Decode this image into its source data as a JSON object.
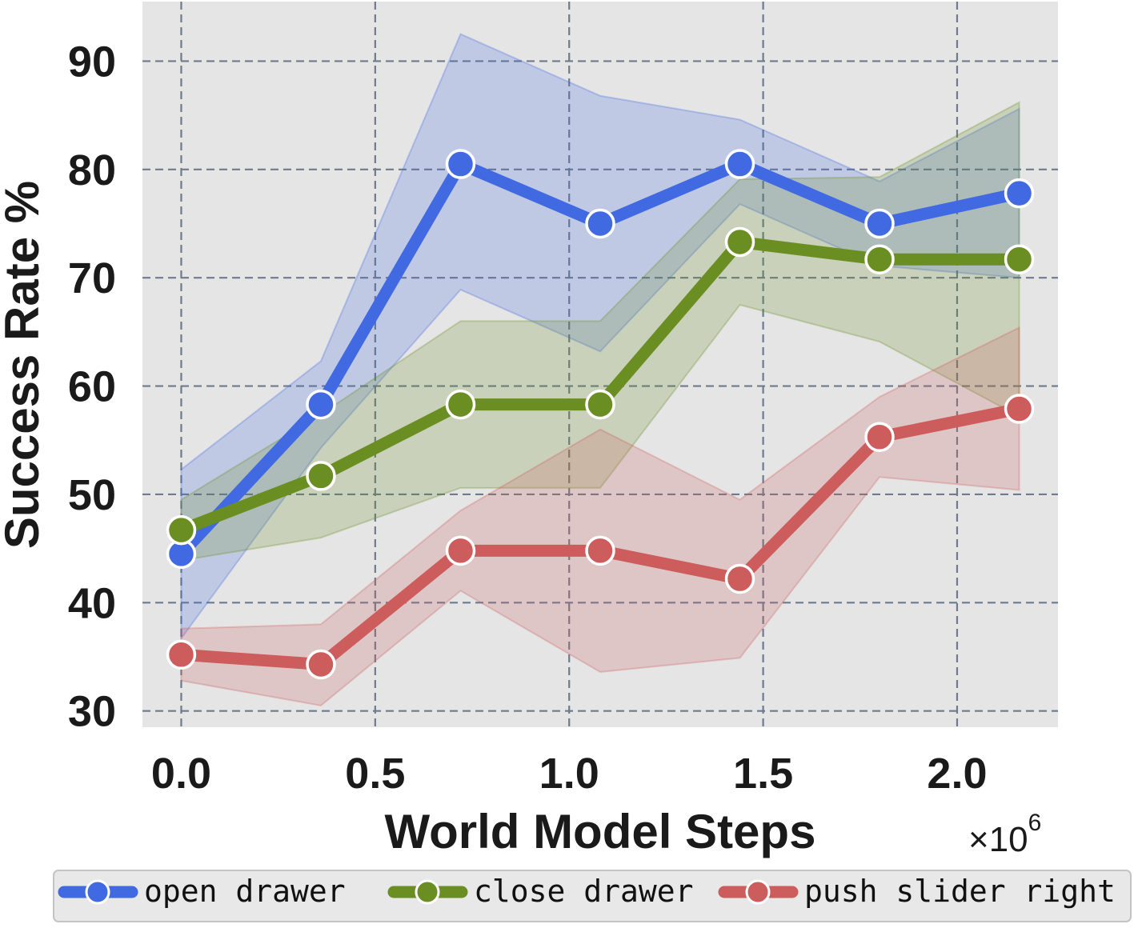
{
  "chart_data": {
    "type": "line",
    "title": "",
    "xlabel": "World Model Steps",
    "ylabel": "Success Rate %",
    "x_multiplier_label": "×10",
    "x_multiplier_exp": "6",
    "x": [
      0.0,
      0.36,
      0.72,
      1.08,
      1.44,
      1.8,
      2.16
    ],
    "xlim": [
      -0.1,
      2.26
    ],
    "ylim": [
      28.5,
      95.5
    ],
    "xticks": [
      "0.0",
      "0.5",
      "1.0",
      "1.5",
      "2.0"
    ],
    "xtick_values": [
      0.0,
      0.5,
      1.0,
      1.5,
      2.0
    ],
    "yticks": [
      "30",
      "40",
      "50",
      "60",
      "70",
      "80",
      "90"
    ],
    "ytick_values": [
      30,
      40,
      50,
      60,
      70,
      80,
      90
    ],
    "grid": true,
    "legend_position": "bottom",
    "series": [
      {
        "name": "open drawer",
        "color": "#4169e1",
        "values": [
          44.5,
          58.3,
          80.5,
          75.0,
          80.5,
          75.0,
          77.8
        ],
        "upper": [
          52.3,
          62.3,
          92.5,
          86.8,
          84.6,
          78.9,
          85.6
        ],
        "lower": [
          36.7,
          54.3,
          68.9,
          63.2,
          76.8,
          71.1,
          70.0
        ]
      },
      {
        "name": "close drawer",
        "color": "#6b8e23",
        "values": [
          46.7,
          51.7,
          58.3,
          58.3,
          73.3,
          71.7,
          71.7
        ],
        "upper": [
          49.5,
          57.4,
          66.0,
          66.0,
          79.1,
          79.3,
          86.2
        ],
        "lower": [
          43.9,
          46.0,
          50.6,
          50.6,
          67.5,
          64.1,
          57.2
        ]
      },
      {
        "name": "push slider right",
        "color": "#cd5c5c",
        "values": [
          35.2,
          34.3,
          44.8,
          44.8,
          42.2,
          55.3,
          57.9
        ],
        "upper": [
          37.6,
          38.0,
          48.5,
          56.0,
          49.5,
          59.0,
          65.4
        ],
        "lower": [
          32.8,
          30.5,
          41.1,
          33.6,
          34.9,
          51.6,
          50.4
        ]
      }
    ]
  }
}
